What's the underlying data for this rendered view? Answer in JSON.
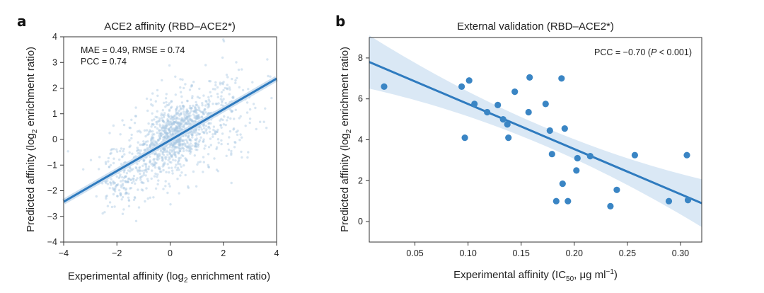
{
  "chart_data": [
    {
      "panel": "a",
      "type": "scatter",
      "title": "ACE2 affinity (RBD–ACE2*)",
      "xlabel_main": "Experimental affinity (log",
      "xlabel_sub": "2",
      "xlabel_tail": " enrichment ratio)",
      "ylabel_main": "Predicted affinity (log",
      "ylabel_sub": "2",
      "ylabel_tail": " enrichment ratio)",
      "xlim": [
        -4,
        4
      ],
      "ylim": [
        -4,
        4
      ],
      "xticks": [
        -4,
        -2,
        0,
        2,
        4
      ],
      "xtick_labels": [
        "−4",
        "−2",
        "0",
        "2",
        "4"
      ],
      "yticks": [
        -4,
        -3,
        -2,
        -1,
        0,
        1,
        2,
        3,
        4
      ],
      "ytick_labels": [
        "−4",
        "−3",
        "−2",
        "−1",
        "0",
        "1",
        "2",
        "3",
        "4"
      ],
      "annotation_line1": "MAE = 0.49, RMSE = 0.74",
      "annotation_line2": "PCC = 0.74",
      "fit": {
        "slope": 0.6,
        "intercept": -0.03
      },
      "point_color": "#a9c8e3",
      "line_color": "#2f7bbf",
      "density": {
        "n_points": 1400,
        "description_clusters": [
          {
            "cx": 0.2,
            "cy": 0.15,
            "sx": 0.55,
            "sy": 0.5,
            "w": 0.45
          },
          {
            "cx": -1.7,
            "cy": -1.5,
            "sx": 0.45,
            "sy": 0.6,
            "w": 0.12
          },
          {
            "cx": 0.5,
            "cy": 0.3,
            "sx": 1.3,
            "sy": 0.95,
            "w": 0.43
          }
        ]
      }
    },
    {
      "panel": "b",
      "type": "scatter",
      "title": "External validation (RBD–ACE2*)",
      "xlabel_main": "Experimental affinity (IC",
      "xlabel_sub": "50",
      "xlabel_tail": ", μg ml",
      "xlabel_sup": "−1",
      "xlabel_end": ")",
      "ylabel_main": "Predicted affinity (log",
      "ylabel_sub": "2",
      "ylabel_tail": " enrichment ratio)",
      "xlim": [
        0.007,
        0.32
      ],
      "ylim": [
        -1.0,
        9.0
      ],
      "xticks": [
        0.05,
        0.1,
        0.15,
        0.2,
        0.25,
        0.3
      ],
      "xtick_labels": [
        "0.05",
        "0.10",
        "0.15",
        "0.20",
        "0.25",
        "0.30"
      ],
      "yticks": [
        0,
        2,
        4,
        6,
        8
      ],
      "ytick_labels": [
        "0",
        "2",
        "4",
        "6",
        "8"
      ],
      "annotation_prefix": "PCC = −0.70 (",
      "annotation_italic": "P",
      "annotation_suffix": " < 0.001)",
      "fit": {
        "x0": 0.007,
        "y0": 7.8,
        "x1": 0.32,
        "y1": 0.9
      },
      "point_color": "#3a85c4",
      "line_color": "#2f7bbf",
      "band_color": "#d4e4f3",
      "x": [
        0.021,
        0.094,
        0.097,
        0.101,
        0.106,
        0.118,
        0.128,
        0.133,
        0.137,
        0.138,
        0.144,
        0.157,
        0.158,
        0.173,
        0.177,
        0.179,
        0.183,
        0.188,
        0.189,
        0.191,
        0.194,
        0.202,
        0.203,
        0.215,
        0.234,
        0.24,
        0.257,
        0.289,
        0.306,
        0.307
      ],
      "y": [
        6.6,
        6.6,
        4.1,
        6.9,
        5.75,
        5.35,
        5.7,
        5.0,
        4.75,
        4.1,
        6.35,
        5.35,
        7.05,
        5.75,
        4.45,
        3.3,
        1.0,
        7.0,
        1.85,
        4.55,
        1.0,
        2.5,
        3.1,
        3.2,
        0.75,
        1.55,
        3.25,
        1.0,
        3.25,
        1.05
      ]
    }
  ]
}
